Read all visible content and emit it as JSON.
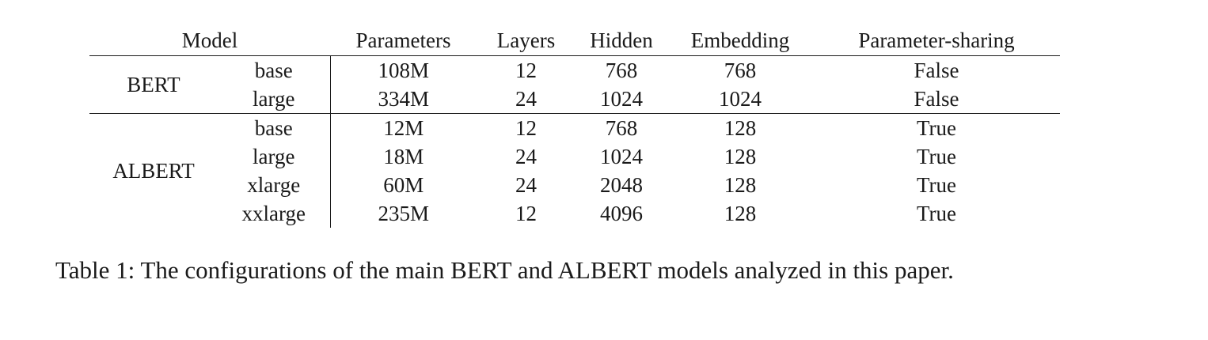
{
  "table": {
    "headers": {
      "model": "Model",
      "parameters": "Parameters",
      "layers": "Layers",
      "hidden": "Hidden",
      "embedding": "Embedding",
      "parameter_sharing": "Parameter-sharing"
    },
    "groups": [
      {
        "family": "BERT",
        "rows": [
          {
            "variant": "base",
            "parameters": "108M",
            "layers": "12",
            "hidden": "768",
            "embedding": "768",
            "parameter_sharing": "False"
          },
          {
            "variant": "large",
            "parameters": "334M",
            "layers": "24",
            "hidden": "1024",
            "embedding": "1024",
            "parameter_sharing": "False"
          }
        ]
      },
      {
        "family": "ALBERT",
        "rows": [
          {
            "variant": "base",
            "parameters": "12M",
            "layers": "12",
            "hidden": "768",
            "embedding": "128",
            "parameter_sharing": "True"
          },
          {
            "variant": "large",
            "parameters": "18M",
            "layers": "24",
            "hidden": "1024",
            "embedding": "128",
            "parameter_sharing": "True"
          },
          {
            "variant": "xlarge",
            "parameters": "60M",
            "layers": "24",
            "hidden": "2048",
            "embedding": "128",
            "parameter_sharing": "True"
          },
          {
            "variant": "xxlarge",
            "parameters": "235M",
            "layers": "12",
            "hidden": "4096",
            "embedding": "128",
            "parameter_sharing": "True"
          }
        ]
      }
    ]
  },
  "caption": "Table 1: The configurations of the main BERT and ALBERT models analyzed in this paper."
}
